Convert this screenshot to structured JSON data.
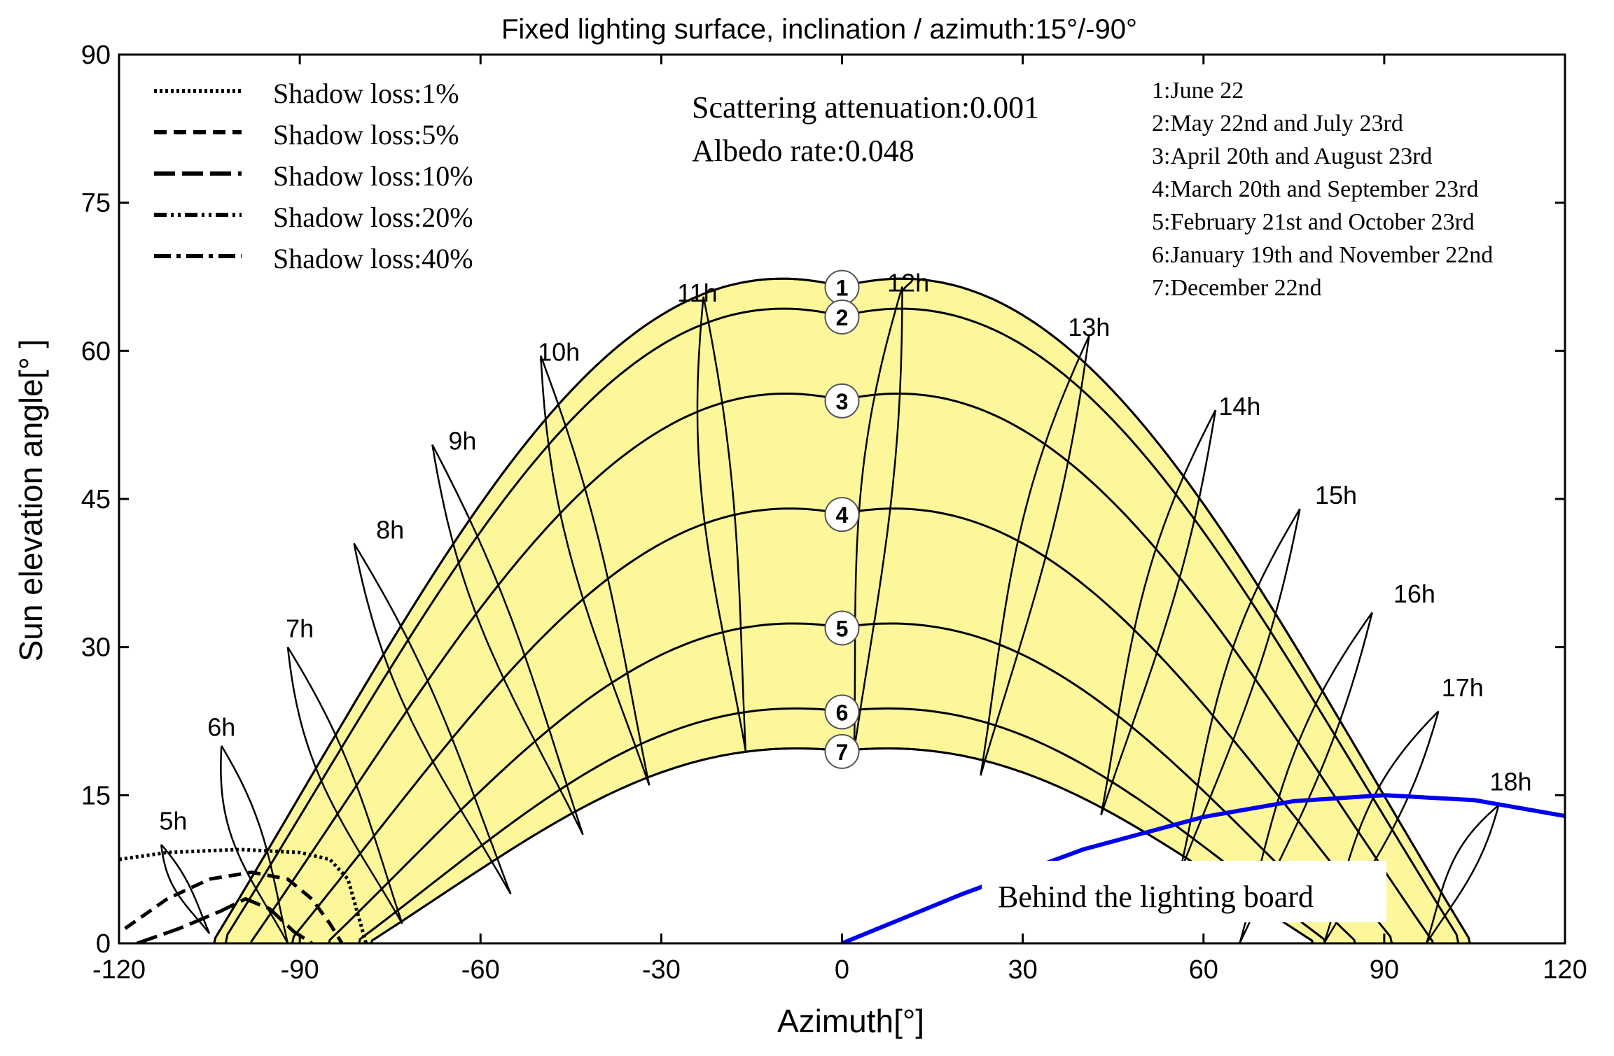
{
  "chart_data": {
    "type": "line",
    "title": "Fixed lighting surface, inclination / azimuth:15°/-90°",
    "xlabel": "Azimuth[°]",
    "ylabel": "Sun elevation angle[°  ]",
    "xlim": [
      -120,
      120
    ],
    "ylim": [
      0,
      90
    ],
    "xticks": [
      -120,
      -90,
      -60,
      -30,
      0,
      30,
      60,
      90,
      120
    ],
    "yticks": [
      0,
      15,
      30,
      45,
      60,
      75,
      90
    ],
    "grid": false,
    "fill_color": "#fbf79a",
    "annotation_lines": [
      "Scattering attenuation:0.001",
      "Albedo rate:0.048"
    ],
    "shadow_legend": [
      {
        "label": "Shadow loss:1%",
        "style": "dotted"
      },
      {
        "label": "Shadow loss:5%",
        "style": "dashed"
      },
      {
        "label": "Shadow loss:10%",
        "style": "long-dash"
      },
      {
        "label": "Shadow loss:20%",
        "style": "dash-dot-dot"
      },
      {
        "label": "Shadow loss:40%",
        "style": "dash-dot"
      }
    ],
    "date_legend": [
      "1:June 22",
      "2:May 22nd and July 23rd",
      "3:April 20th and August 23rd",
      "4:March 20th and September 23rd",
      "5:February 21st and October 23rd",
      "6:January 19th and November 22nd",
      "7:December 22nd"
    ],
    "date_curves": [
      {
        "id": "1",
        "peak_elevation": 66.5
      },
      {
        "id": "2",
        "peak_elevation": 63.5
      },
      {
        "id": "3",
        "peak_elevation": 55
      },
      {
        "id": "4",
        "peak_elevation": 43.5
      },
      {
        "id": "5",
        "peak_elevation": 32
      },
      {
        "id": "6",
        "peak_elevation": 23.5
      },
      {
        "id": "7",
        "peak_elevation": 19.5
      }
    ],
    "hour_labels": [
      {
        "label": "5h",
        "x": -111,
        "y": 11.5
      },
      {
        "label": "6h",
        "x": -103,
        "y": 21
      },
      {
        "label": "7h",
        "x": -90,
        "y": 31
      },
      {
        "label": "8h",
        "x": -75,
        "y": 41
      },
      {
        "label": "9h",
        "x": -63,
        "y": 50
      },
      {
        "label": "10h",
        "x": -47,
        "y": 59
      },
      {
        "label": "11h",
        "x": -24,
        "y": 65
      },
      {
        "label": "12h",
        "x": 11,
        "y": 66
      },
      {
        "label": "13h",
        "x": 41,
        "y": 61.5
      },
      {
        "label": "14h",
        "x": 66,
        "y": 53.5
      },
      {
        "label": "15h",
        "x": 82,
        "y": 44.5
      },
      {
        "label": "16h",
        "x": 95,
        "y": 34.5
      },
      {
        "label": "17h",
        "x": 103,
        "y": 25
      },
      {
        "label": "18h",
        "x": 111,
        "y": 15.5
      }
    ],
    "analemmas": [
      {
        "hour": "5h",
        "top": [
          -113,
          10
        ],
        "bottom": [
          -105,
          1
        ]
      },
      {
        "hour": "6h",
        "top": [
          -103,
          20
        ],
        "bottom": [
          -92,
          0
        ]
      },
      {
        "hour": "7h",
        "top": [
          -92,
          30
        ],
        "bottom": [
          -73,
          2
        ]
      },
      {
        "hour": "8h",
        "top": [
          -81,
          40.5
        ],
        "bottom": [
          -55,
          5
        ]
      },
      {
        "hour": "9h",
        "top": [
          -68,
          50.5
        ],
        "bottom": [
          -43,
          11
        ]
      },
      {
        "hour": "10h",
        "top": [
          -50,
          59.5
        ],
        "bottom": [
          -32,
          16
        ]
      },
      {
        "hour": "11h",
        "top": [
          -23,
          65.5
        ],
        "bottom": [
          -16,
          19.5
        ]
      },
      {
        "hour": "12h",
        "top": [
          10,
          66.5
        ],
        "bottom": [
          2,
          19.5
        ]
      },
      {
        "hour": "13h",
        "top": [
          41,
          61.5
        ],
        "bottom": [
          23,
          17
        ]
      },
      {
        "hour": "14h",
        "top": [
          62,
          54
        ],
        "bottom": [
          43,
          13
        ]
      },
      {
        "hour": "15h",
        "top": [
          76,
          44
        ],
        "bottom": [
          56,
          7
        ]
      },
      {
        "hour": "16h",
        "top": [
          88,
          33.5
        ],
        "bottom": [
          66,
          0
        ]
      },
      {
        "hour": "17h",
        "top": [
          99,
          23.5
        ],
        "bottom": [
          80,
          0
        ]
      },
      {
        "hour": "18h",
        "top": [
          109,
          14
        ],
        "bottom": [
          97,
          0
        ]
      }
    ],
    "shadow_curves": [
      {
        "name": "Shadow loss:1%",
        "x": [
          -120,
          -112,
          -100,
          -90,
          -85,
          -82,
          -79
        ],
        "y": [
          8.5,
          9.2,
          9.5,
          9.2,
          8.5,
          6.5,
          0
        ]
      },
      {
        "name": "Shadow loss:5%",
        "x": [
          -119,
          -112,
          -105,
          -98,
          -92,
          -88,
          -85,
          -83
        ],
        "y": [
          1.5,
          4.5,
          6.5,
          7.2,
          6.5,
          4.5,
          2,
          0
        ]
      },
      {
        "name": "Shadow loss:10%",
        "x": [
          -117,
          -110,
          -103,
          -99,
          -95,
          -91,
          -88
        ],
        "y": [
          0,
          1.5,
          3.3,
          4.5,
          3.5,
          1.2,
          0
        ]
      }
    ],
    "horizon_series": {
      "name": "Behind the lighting board",
      "x": [
        0,
        20,
        40,
        60,
        75,
        90,
        105,
        120
      ],
      "y": [
        0,
        5,
        9.5,
        12.8,
        14.4,
        15,
        14.5,
        12.9
      ]
    }
  }
}
